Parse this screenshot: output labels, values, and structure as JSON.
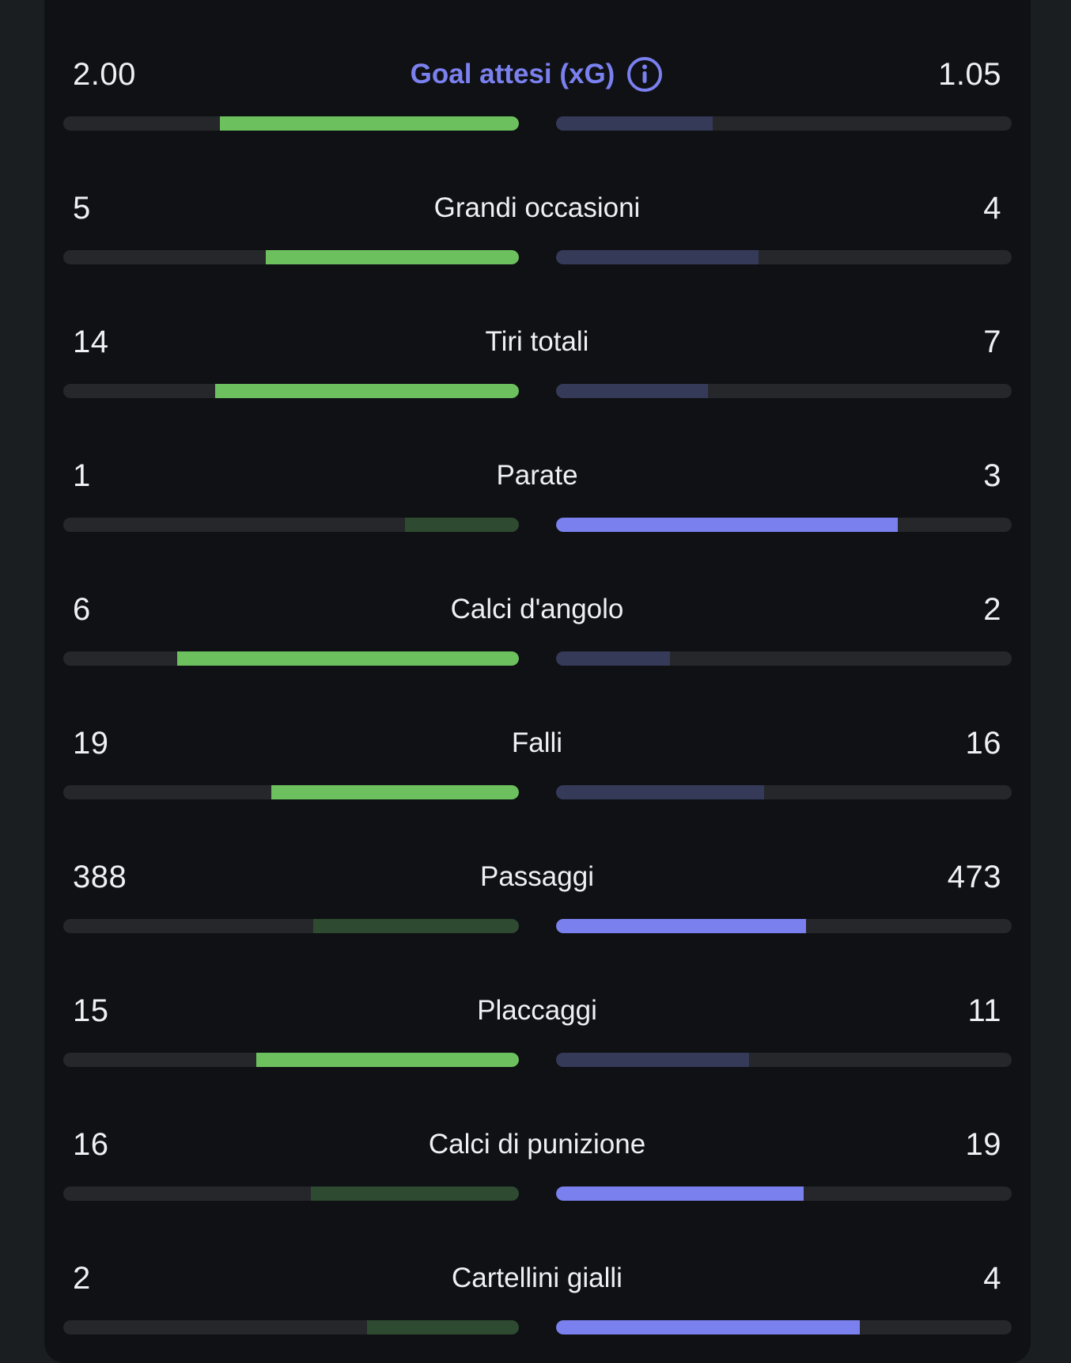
{
  "colors": {
    "background": "#1b1e21",
    "card": "#0f1114",
    "text": "#eef0f3",
    "accent": "#7b80ef",
    "track": "#25272b",
    "home_win": "#6cc15e",
    "home_lose": "#2e4a30",
    "away_win": "#7b80ef",
    "away_lose": "#363a59"
  },
  "stats": [
    {
      "label": "Goal attesi (xG)",
      "home": "2.00",
      "away": "1.05",
      "home_fill": 0.656,
      "away_fill": 0.344,
      "info_icon": "info-circle-icon",
      "accent": true
    },
    {
      "label": "Grandi occasioni",
      "home": "5",
      "away": "4",
      "home_fill": 0.556,
      "away_fill": 0.444
    },
    {
      "label": "Tiri totali",
      "home": "14",
      "away": "7",
      "home_fill": 0.667,
      "away_fill": 0.333
    },
    {
      "label": "Parate",
      "home": "1",
      "away": "3",
      "home_fill": 0.25,
      "away_fill": 0.75
    },
    {
      "label": "Calci d'angolo",
      "home": "6",
      "away": "2",
      "home_fill": 0.75,
      "away_fill": 0.25
    },
    {
      "label": "Falli",
      "home": "19",
      "away": "16",
      "home_fill": 0.543,
      "away_fill": 0.457
    },
    {
      "label": "Passaggi",
      "home": "388",
      "away": "473",
      "home_fill": 0.451,
      "away_fill": 0.549
    },
    {
      "label": "Placcaggi",
      "home": "15",
      "away": "11",
      "home_fill": 0.577,
      "away_fill": 0.423
    },
    {
      "label": "Calci di punizione",
      "home": "16",
      "away": "19",
      "home_fill": 0.457,
      "away_fill": 0.543
    },
    {
      "label": "Cartellini gialli",
      "home": "2",
      "away": "4",
      "home_fill": 0.333,
      "away_fill": 0.667
    }
  ]
}
